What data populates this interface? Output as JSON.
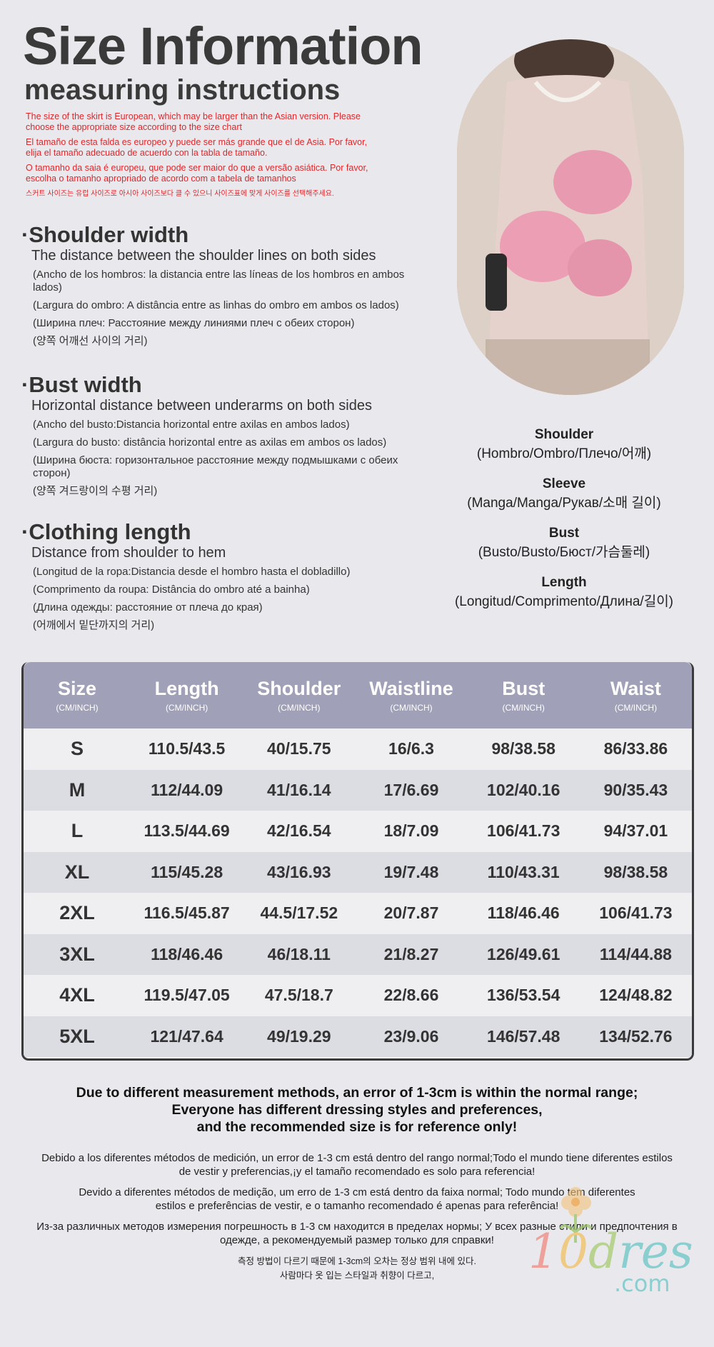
{
  "header": {
    "title": "Size Information",
    "subtitle": "measuring instructions"
  },
  "notice": [
    "The size of the skirt is European, which may be larger than the Asian version. Please choose the appropriate size according to the size chart",
    "El tamaño de esta falda es europeo y puede ser más grande que el de Asia. Por favor, elija el tamaño adecuado de acuerdo con la tabla de tamaño.",
    "O tamanho da saia é europeu, que pode ser maior do que a versão asiática. Por favor, escolha o tamanho apropriado de acordo com a tabela de tamanhos",
    "스커트 사이즈는 유럽 사이즈로 아시아 사이즈보다 클 수 있으니 사이즈표에 맞게 사이즈를 선택해주세요."
  ],
  "sections": [
    {
      "title": "·Shoulder width",
      "desc": "The distance between the shoulder lines on both sides",
      "translations": [
        "(Ancho de los hombros: la distancia entre las líneas de los hombros en ambos lados)",
        "(Largura do ombro: A distância entre as linhas do ombro em ambos os lados)",
        "(Ширина плеч: Расстояние между линиями плеч с обеих сторон)",
        "(양쪽 어깨선 사이의 거리)"
      ]
    },
    {
      "title": "·Bust width",
      "desc": "Horizontal distance between underarms on both sides",
      "translations": [
        "(Ancho del busto:Distancia horizontal entre axilas en ambos lados)",
        "(Largura do busto: distância horizontal entre as axilas em ambos os lados)",
        "(Ширина бюста: горизонтальное расстояние между подмышками с обеих сторон)",
        "(양쪽 겨드랑이의 수평 거리)"
      ]
    },
    {
      "title": "·Clothing length",
      "desc": "Distance from shoulder to hem",
      "translations": [
        "(Longitud de la ropa:Distancia desde el hombro hasta el dobladillo)",
        "(Comprimento da roupa: Distância do ombro até a bainha)",
        "(Длина одежды: расстояние от плеча до края)",
        "(어깨에서 밑단까지의 거리)"
      ]
    }
  ],
  "labels": [
    {
      "name": "Shoulder",
      "tr": "(Hombro/Ombro/Плечо/어깨)"
    },
    {
      "name": "Sleeve",
      "tr": "(Manga/Manga/Рукав/소매 길이)"
    },
    {
      "name": "Bust",
      "tr": "(Busto/Busto/Бюст/가슴둘레)"
    },
    {
      "name": "Length",
      "tr": "(Longitud/Comprimento/Длина/길이)"
    }
  ],
  "table": {
    "unit": "(CM/INCH)",
    "headers": [
      "Size",
      "Length",
      "Shoulder",
      "Waistline",
      "Bust",
      "Waist"
    ],
    "rows": [
      [
        "S",
        "110.5/43.5",
        "40/15.75",
        "16/6.3",
        "98/38.58",
        "86/33.86"
      ],
      [
        "M",
        "112/44.09",
        "41/16.14",
        "17/6.69",
        "102/40.16",
        "90/35.43"
      ],
      [
        "L",
        "113.5/44.69",
        "42/16.54",
        "18/7.09",
        "106/41.73",
        "94/37.01"
      ],
      [
        "XL",
        "115/45.28",
        "43/16.93",
        "19/7.48",
        "110/43.31",
        "98/38.58"
      ],
      [
        "2XL",
        "116.5/45.87",
        "44.5/17.52",
        "20/7.87",
        "118/46.46",
        "106/41.73"
      ],
      [
        "3XL",
        "118/46.46",
        "46/18.11",
        "21/8.27",
        "126/49.61",
        "114/44.88"
      ],
      [
        "4XL",
        "119.5/47.05",
        "47.5/18.7",
        "22/8.66",
        "136/53.54",
        "124/48.82"
      ],
      [
        "5XL",
        "121/47.64",
        "49/19.29",
        "23/9.06",
        "146/57.48",
        "134/52.76"
      ]
    ]
  },
  "footer": {
    "bold": [
      "Due to different measurement methods, an error of 1-3cm is within the normal range;",
      "Everyone has different dressing styles and preferences,",
      "and the recommended size is for reference only!"
    ],
    "es": "Debido a los diferentes métodos de medición, un error de 1-3 cm está dentro del rango normal;Todo el mundo tiene diferentes estilos de vestir y preferencias,¡y el tamaño recomendado es solo para referencia!",
    "pt": "Devido a diferentes métodos de medição, um erro de 1-3 cm está dentro da faixa normal; Todo mundo tem diferentes estilos e preferências de vestir, e o tamanho recomendado é apenas para referência!",
    "ru": "Из-за различных методов измерения погрешность в 1-3 см находится в пределах нормы; У всех разные стили и предпочтения в одежде, а рекомендуемый размер только для справки!",
    "ko": [
      "측정 방법이 다르기 때문에 1-3cm의 오차는 정상 범위 내에 있다.",
      "사람마다 옷 입는 스타일과 취향이 다르고,"
    ]
  },
  "logo": {
    "text": "10dress",
    ".com": ".com"
  },
  "colors": {
    "header_bg": "#a0a0b8",
    "alt_row": "#dcdce3",
    "notice": "#e0262a",
    "background": "#e9e9ed"
  }
}
